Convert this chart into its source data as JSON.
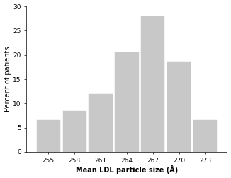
{
  "categories": [
    255,
    258,
    261,
    264,
    267,
    270,
    273
  ],
  "values": [
    6.5,
    8.5,
    12.0,
    20.5,
    28.0,
    18.5,
    6.5
  ],
  "bar_color": "#c8c8c8",
  "bar_edgecolor": "#c8c8c8",
  "xlabel": "Mean LDL particle size (Å)",
  "ylabel": "Percent of patients",
  "ylim": [
    0,
    30
  ],
  "yticks": [
    0,
    5,
    10,
    15,
    20,
    25,
    30
  ],
  "xlabel_fontsize": 7,
  "ylabel_fontsize": 7,
  "tick_fontsize": 6.5,
  "bar_width": 2.7,
  "background_color": "#ffffff"
}
